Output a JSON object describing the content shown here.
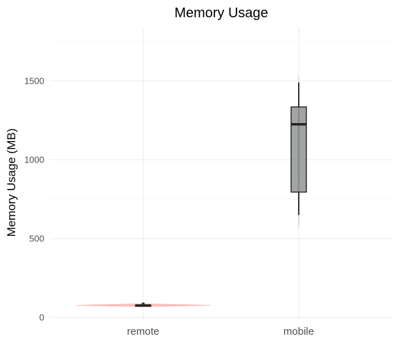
{
  "chart_data": {
    "type": "violin-boxplot",
    "title": "Memory Usage",
    "xlabel": "",
    "ylabel": "Memory Usage (MB)",
    "ylim": [
      -5,
      1770
    ],
    "yticks": [
      0,
      500,
      1000,
      1500
    ],
    "grid": true,
    "legend": "none",
    "categories": [
      "remote",
      "mobile"
    ],
    "series": [
      {
        "category": "remote",
        "min": 70,
        "q1": 73,
        "median": 75,
        "q3": 78,
        "max": 80,
        "outliers": [
          85
        ],
        "violin_fill": "#f8766d",
        "box_fill": "#595959"
      },
      {
        "category": "mobile",
        "min": 650,
        "q1": 795,
        "median": 1225,
        "q3": 1335,
        "max": 1490,
        "outliers": [],
        "violin_fill": "#00bfc4",
        "box_fill": "#595959"
      }
    ]
  }
}
